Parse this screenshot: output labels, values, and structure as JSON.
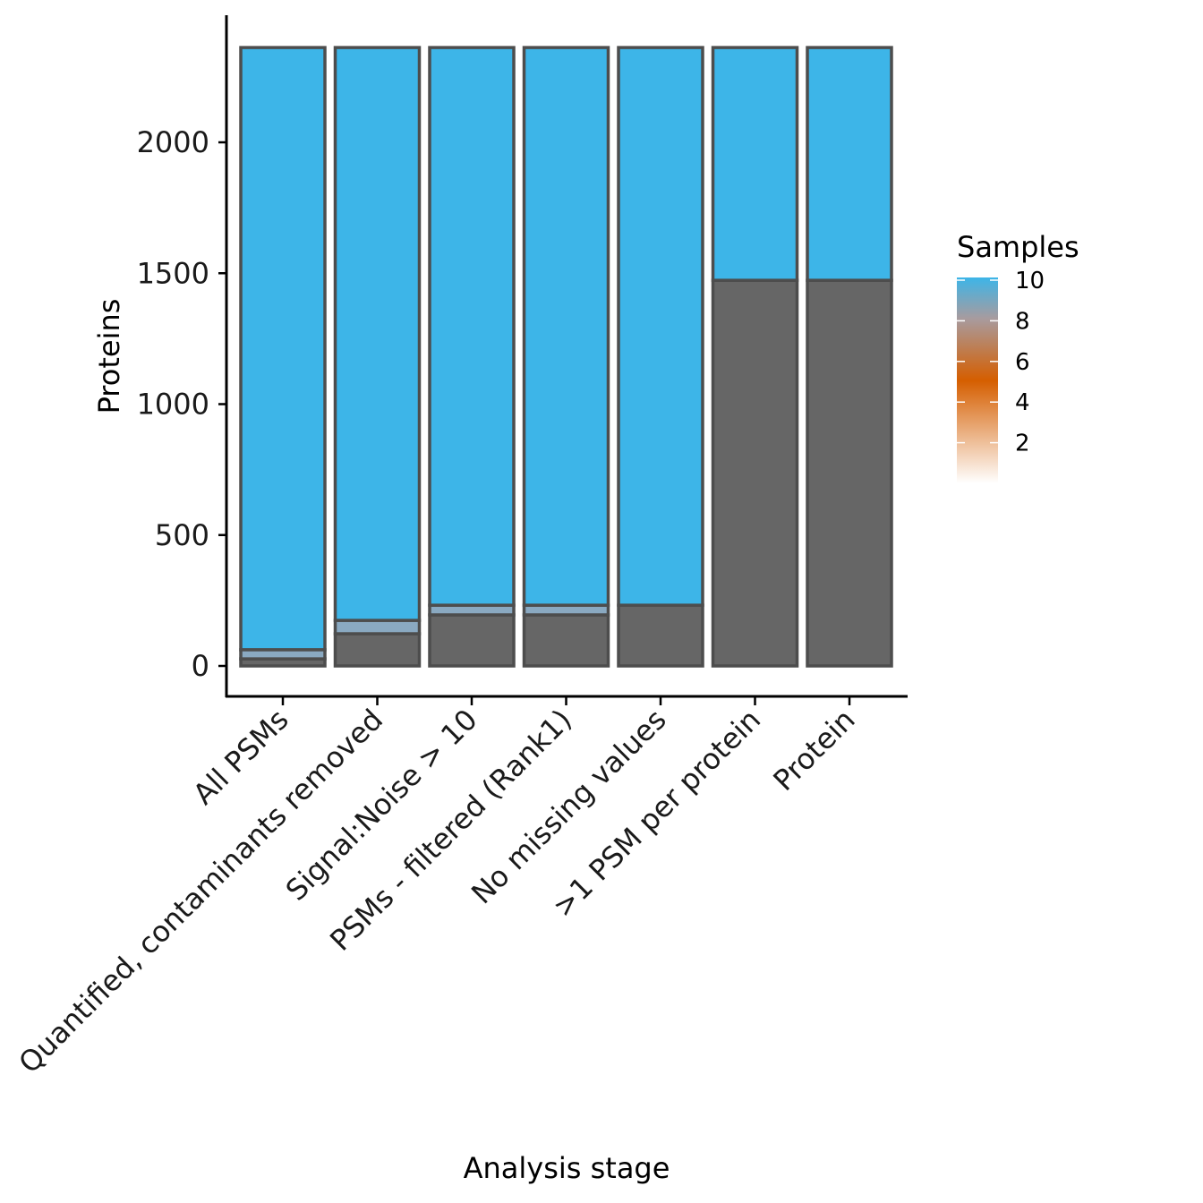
{
  "chart_data": {
    "type": "bar",
    "stacked": true,
    "xlabel": "Analysis stage",
    "ylabel": "Proteins",
    "ylim": [
      -120,
      2480
    ],
    "yticks": [
      0,
      500,
      1000,
      1500,
      2000
    ],
    "categories": [
      "All PSMs",
      "Quantified, contaminants removed",
      "Signal:Noise > 10",
      "PSMs - filtered (Rank1)",
      "No missing values",
      ">1 PSM per protein",
      "Protein"
    ],
    "segments": [
      {
        "samples": null,
        "color": "#666666",
        "values": [
          27,
          123,
          195,
          195,
          232,
          1473,
          1473
        ]
      },
      {
        "samples": 9,
        "color": "#8aa9c1",
        "values": [
          35,
          51,
          37,
          37,
          0,
          0,
          0
        ]
      },
      {
        "samples": 10,
        "color": "#3db5e8",
        "values": [
          2300,
          2188,
          2130,
          2130,
          2130,
          889,
          889
        ]
      }
    ],
    "legend": {
      "title": "Samples",
      "position": "right",
      "type": "colorbar",
      "ticks": [
        "10",
        "8",
        "6",
        "4",
        "2"
      ],
      "tick_values": [
        10,
        8,
        6,
        4,
        2
      ],
      "range": [
        0,
        10
      ],
      "gradient": [
        {
          "value": 0,
          "color": "#ffffff"
        },
        {
          "value": 5,
          "color": "#d55e00"
        },
        {
          "value": 8,
          "color": "#a89b9e"
        },
        {
          "value": 10,
          "color": "#3db5e8"
        }
      ]
    },
    "grid": false
  }
}
